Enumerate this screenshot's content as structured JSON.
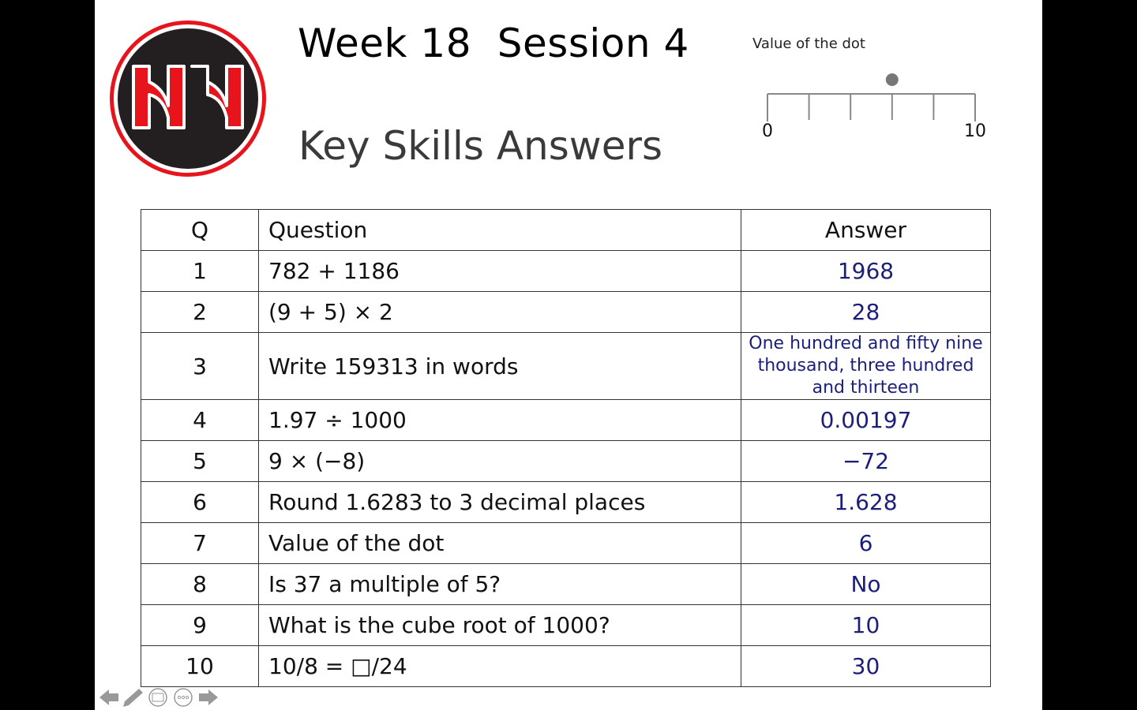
{
  "header": {
    "title": "Week 18  Session 4",
    "subtitle": "Key Skills Answers",
    "logo_text": "NH"
  },
  "number_line": {
    "label": "Value of the dot",
    "min_label": "0",
    "max_label": "10",
    "min": 0,
    "max": 10,
    "intervals": 5,
    "dot_value": 6
  },
  "table": {
    "headers": [
      "Q",
      "Question",
      "Answer"
    ],
    "rows": [
      {
        "q": "1",
        "question": "782 + 1186",
        "answer": "1968"
      },
      {
        "q": "2",
        "question": "(9 + 5) × 2",
        "answer": "28"
      },
      {
        "q": "3",
        "question": "Write 159313 in words",
        "answer": "One hundred and fifty nine thousand, three hundred and thirteen"
      },
      {
        "q": "4",
        "question": "1.97 ÷ 1000",
        "answer": "0.00197"
      },
      {
        "q": "5",
        "question": "9 × (−8)",
        "answer": "−72"
      },
      {
        "q": "6",
        "question": "Round 1.6283 to 3 decimal places",
        "answer": "1.628"
      },
      {
        "q": "7",
        "question": "Value of the dot",
        "answer": "6"
      },
      {
        "q": "8",
        "question": "Is 37 a multiple of 5?",
        "answer": "No"
      },
      {
        "q": "9",
        "question": "What is the cube root of 1000?",
        "answer": "10"
      },
      {
        "q": "10",
        "question": "10/8 = □/24",
        "answer": "30"
      }
    ]
  },
  "colors": {
    "answer": "#1b1f7a",
    "logo_red": "#e8141b",
    "logo_dark": "#231f20"
  }
}
